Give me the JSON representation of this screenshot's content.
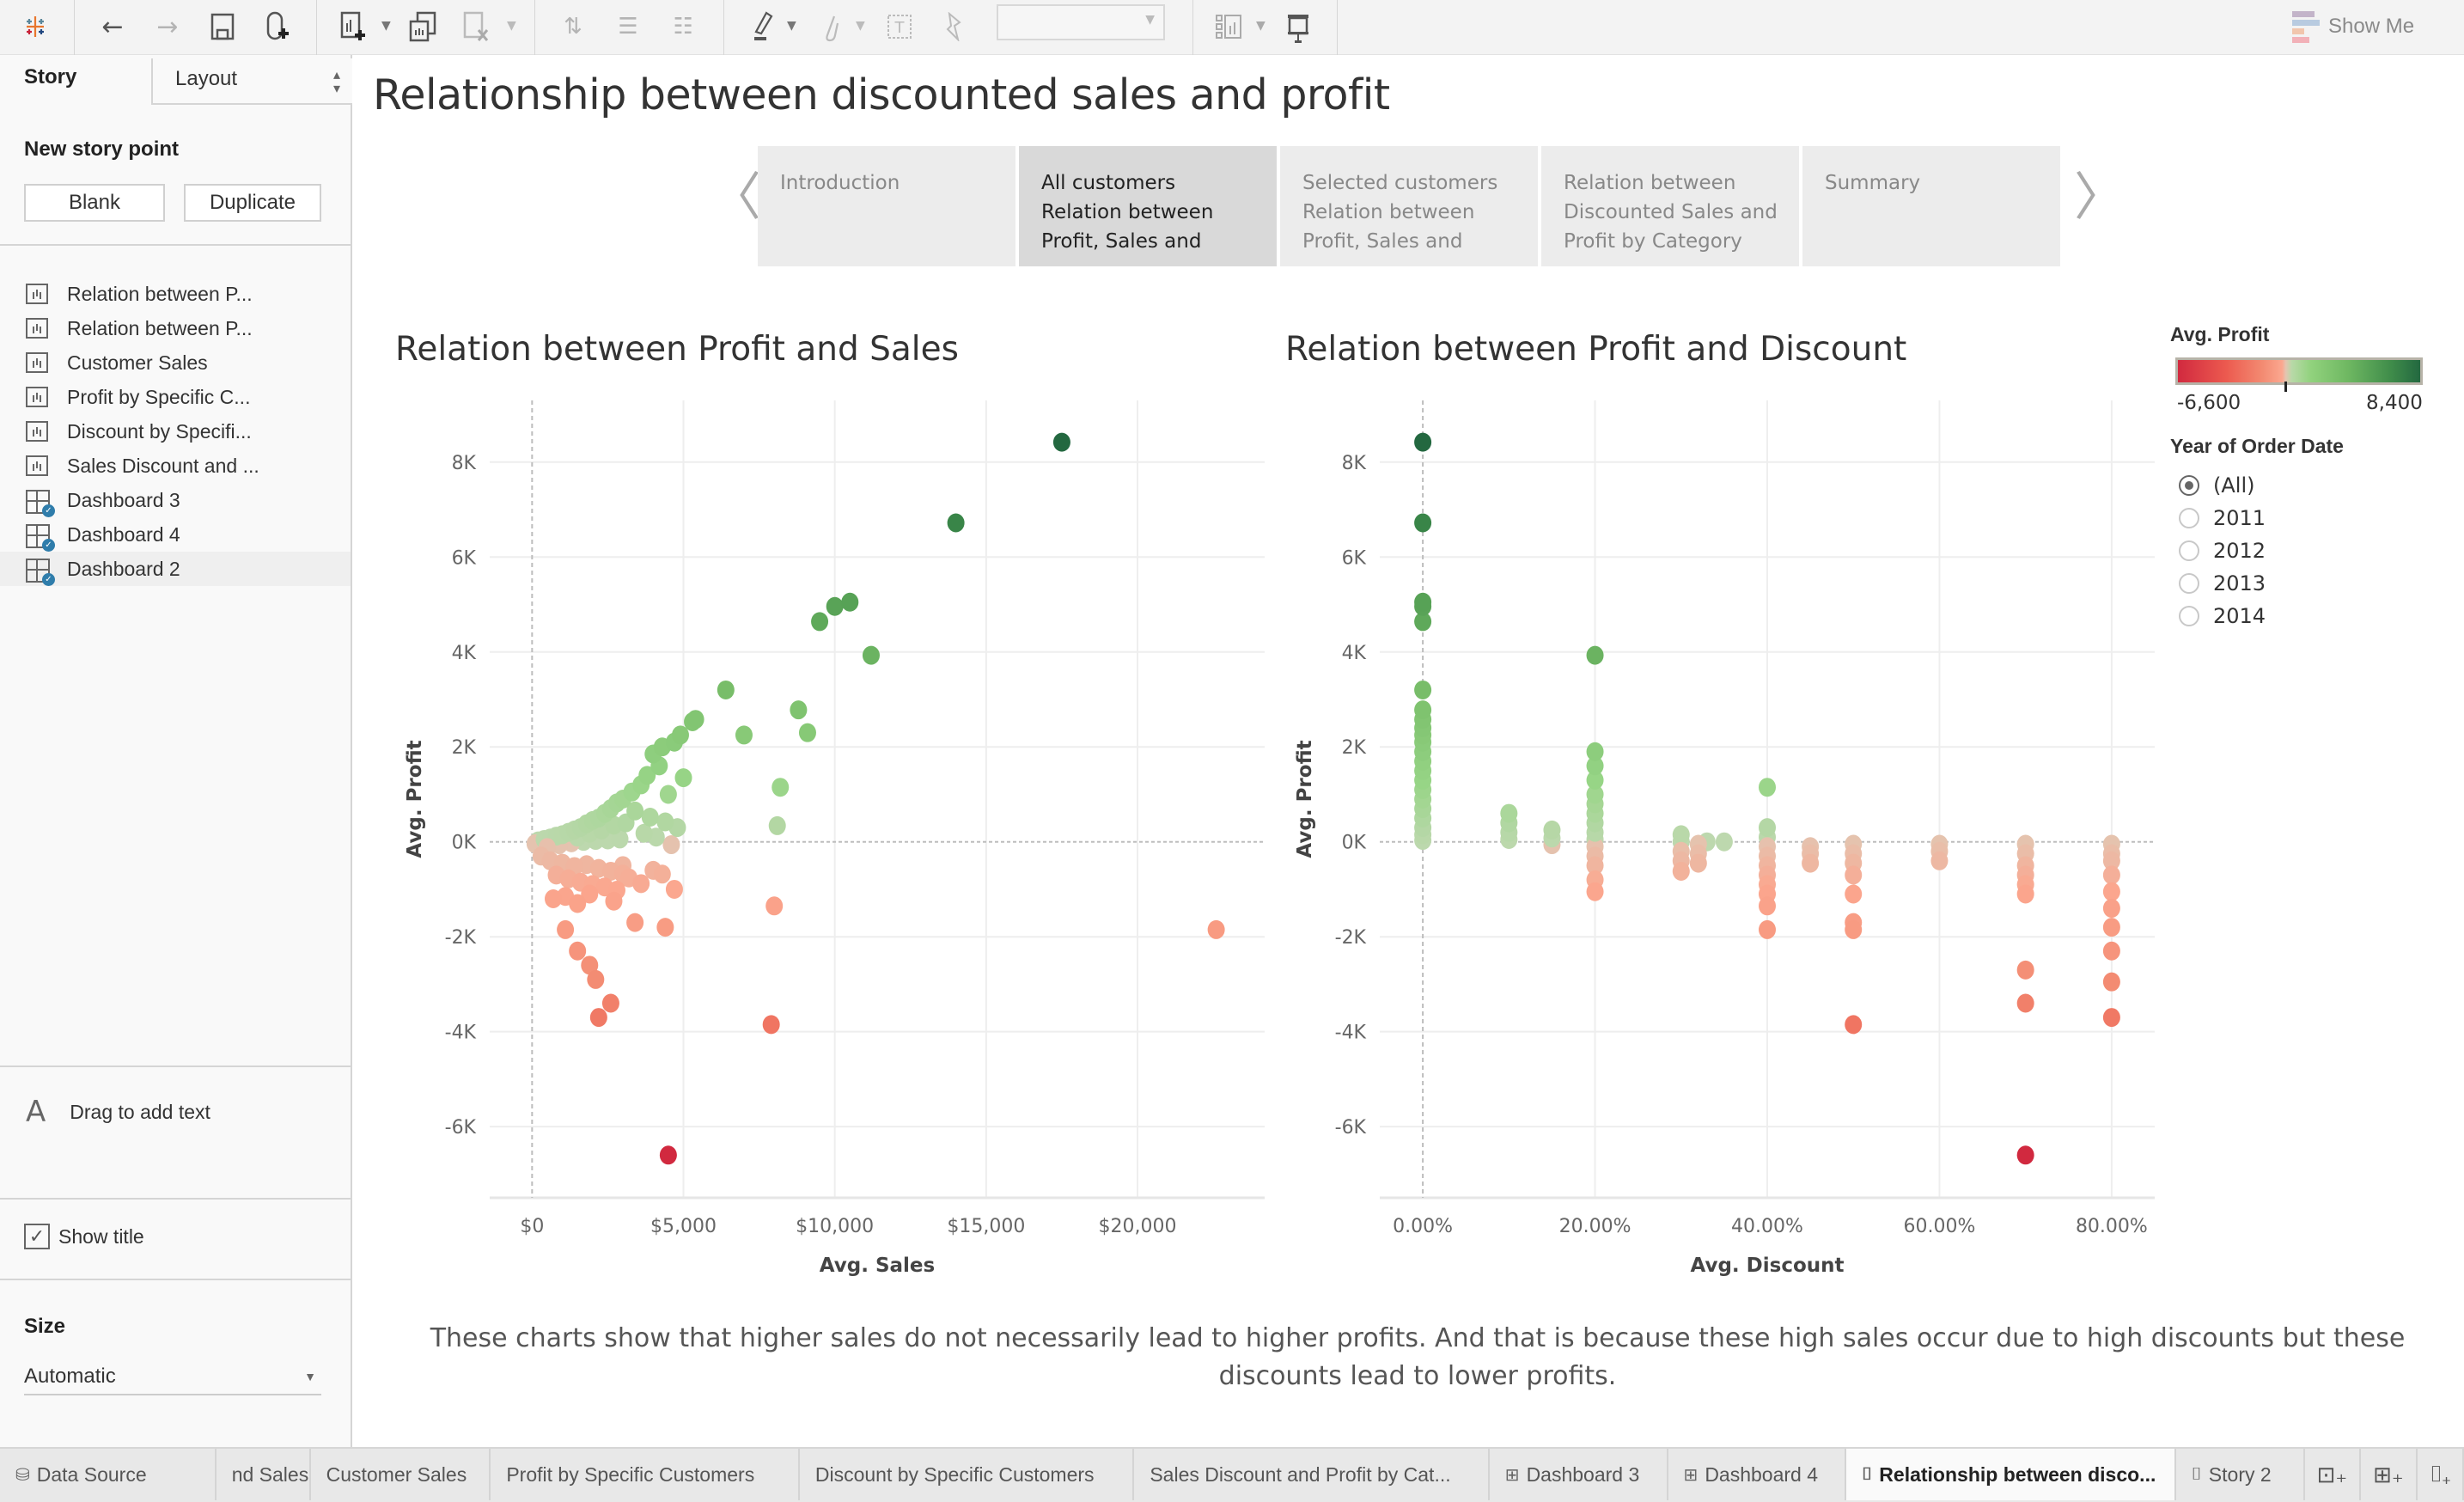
{
  "toolbar": {
    "icons": [
      "tableau-logo-icon",
      "undo-icon",
      "redo-icon",
      "save-icon",
      "add-datasource-icon",
      "new-worksheet-icon",
      "duplicate-sheet-icon",
      "clear-sheet-icon",
      "swap-icon",
      "sort-ascending-icon",
      "sort-descending-icon",
      "highlight-icon",
      "group-icon",
      "label-icon",
      "pin-icon",
      "fit-dropdown",
      "show-cards-icon",
      "presentation-icon"
    ],
    "show_me_label": "Show Me"
  },
  "sidebar": {
    "tab_story": "Story",
    "tab_layout": "Layout",
    "new_story_point_title": "New story point",
    "blank_button": "Blank",
    "duplicate_button": "Duplicate",
    "sheets": [
      {
        "label": "Relation between P...",
        "type": "worksheet"
      },
      {
        "label": "Relation between P...",
        "type": "worksheet"
      },
      {
        "label": "Customer Sales",
        "type": "worksheet"
      },
      {
        "label": "Profit by  Specific C...",
        "type": "worksheet"
      },
      {
        "label": "Discount by Specifi...",
        "type": "worksheet"
      },
      {
        "label": "Sales Discount and ...",
        "type": "worksheet"
      },
      {
        "label": "Dashboard 3",
        "type": "dashboard"
      },
      {
        "label": "Dashboard 4",
        "type": "dashboard"
      },
      {
        "label": "Dashboard 2",
        "type": "dashboard",
        "active": true
      }
    ],
    "drag_text": "Drag to add text",
    "show_title_label": "Show title",
    "show_title_checked": true,
    "size_label": "Size",
    "size_value": "Automatic"
  },
  "story": {
    "title": "Relationship between discounted sales and profit",
    "points": [
      {
        "lines": [
          "Introduction"
        ],
        "active": false
      },
      {
        "lines": [
          "All customers",
          "Relation between",
          "Profit, Sales and"
        ],
        "active": true
      },
      {
        "lines": [
          "Selected customers",
          "Relation between",
          "Profit, Sales and"
        ],
        "active": false
      },
      {
        "lines": [
          "Relation between",
          "Discounted Sales and",
          "Profit by Category"
        ],
        "active": false
      },
      {
        "lines": [
          "Summary"
        ],
        "active": false
      }
    ],
    "caption": "These charts show that higher sales do not necessarily lead to higher profits. And that is because these high sales occur due to high discounts but these discounts lead to lower profits."
  },
  "legend": {
    "title": "Avg. Profit",
    "min_label": "-6,600",
    "max_label": "8,400",
    "min": -6600,
    "max": 8400,
    "colors": {
      "negative": "#d1293f",
      "neutral": "#e4c4b0",
      "positive": "#236840"
    }
  },
  "filter": {
    "title": "Year of Order Date",
    "options": [
      {
        "label": "(All)",
        "selected": true
      },
      {
        "label": "2011",
        "selected": false
      },
      {
        "label": "2012",
        "selected": false
      },
      {
        "label": "2013",
        "selected": false
      },
      {
        "label": "2014",
        "selected": false
      }
    ]
  },
  "chart_data": [
    {
      "type": "scatter",
      "title": "Relation between Profit and Sales",
      "xlabel": "Avg. Sales",
      "ylabel": "Avg. Profit",
      "xlim": [
        -1400,
        24200
      ],
      "ylim": [
        -7500,
        9300
      ],
      "xticks": [
        0,
        5000,
        10000,
        15000,
        20000
      ],
      "xtick_labels": [
        "$0",
        "$5,000",
        "$10,000",
        "$15,000",
        "$20,000"
      ],
      "yticks": [
        -6000,
        -4000,
        -2000,
        0,
        2000,
        4000,
        6000,
        8000
      ],
      "ytick_labels": [
        "-6K",
        "-4K",
        "-2K",
        "0K",
        "2K",
        "4K",
        "6K",
        "8K"
      ],
      "grid": true,
      "points": [
        [
          17500,
          8420
        ],
        [
          14000,
          6720
        ],
        [
          10000,
          4960
        ],
        [
          10500,
          5050
        ],
        [
          9500,
          4640
        ],
        [
          11200,
          3930
        ],
        [
          6400,
          3200
        ],
        [
          8800,
          2780
        ],
        [
          9100,
          2300
        ],
        [
          7000,
          2250
        ],
        [
          5400,
          2580
        ],
        [
          5300,
          2530
        ],
        [
          4900,
          2250
        ],
        [
          4700,
          2100
        ],
        [
          8200,
          1150
        ],
        [
          8100,
          340
        ],
        [
          4300,
          2000
        ],
        [
          4000,
          1850
        ],
        [
          4200,
          1600
        ],
        [
          3800,
          1400
        ],
        [
          5000,
          1350
        ],
        [
          3600,
          1200
        ],
        [
          3300,
          1050
        ],
        [
          4500,
          1000
        ],
        [
          3000,
          900
        ],
        [
          2800,
          820
        ],
        [
          2600,
          700
        ],
        [
          2400,
          600
        ],
        [
          2200,
          500
        ],
        [
          2000,
          450
        ],
        [
          1800,
          380
        ],
        [
          1600,
          300
        ],
        [
          1400,
          250
        ],
        [
          1200,
          200
        ],
        [
          1000,
          150
        ],
        [
          800,
          120
        ],
        [
          600,
          80
        ],
        [
          400,
          50
        ],
        [
          200,
          20
        ],
        [
          3400,
          650
        ],
        [
          3900,
          520
        ],
        [
          4400,
          420
        ],
        [
          4800,
          300
        ],
        [
          3100,
          400
        ],
        [
          2700,
          350
        ],
        [
          2300,
          250
        ],
        [
          1900,
          180
        ],
        [
          1500,
          100
        ],
        [
          3700,
          180
        ],
        [
          4100,
          100
        ],
        [
          2900,
          60
        ],
        [
          2500,
          40
        ],
        [
          2100,
          30
        ],
        [
          1700,
          10
        ],
        [
          1300,
          -20
        ],
        [
          900,
          -60
        ],
        [
          500,
          -120
        ],
        [
          100,
          -40
        ],
        [
          4600,
          -60
        ],
        [
          300,
          -300
        ],
        [
          600,
          -400
        ],
        [
          1000,
          -450
        ],
        [
          1400,
          -520
        ],
        [
          1800,
          -480
        ],
        [
          2200,
          -560
        ],
        [
          2600,
          -620
        ],
        [
          3000,
          -500
        ],
        [
          800,
          -700
        ],
        [
          1200,
          -780
        ],
        [
          1600,
          -850
        ],
        [
          2000,
          -900
        ],
        [
          2400,
          -950
        ],
        [
          2800,
          -1020
        ],
        [
          3200,
          -760
        ],
        [
          3600,
          -880
        ],
        [
          4000,
          -600
        ],
        [
          4300,
          -680
        ],
        [
          4700,
          -1000
        ],
        [
          3000,
          -680
        ],
        [
          700,
          -1200
        ],
        [
          1100,
          -1150
        ],
        [
          1500,
          -1300
        ],
        [
          1900,
          -1100
        ],
        [
          2700,
          -1250
        ],
        [
          3400,
          -1700
        ],
        [
          4400,
          -1800
        ],
        [
          8000,
          -1350
        ],
        [
          22600,
          -1850
        ],
        [
          1100,
          -1850
        ],
        [
          1500,
          -2300
        ],
        [
          1900,
          -2600
        ],
        [
          2100,
          -2900
        ],
        [
          2600,
          -3400
        ],
        [
          2200,
          -3700
        ],
        [
          7900,
          -3850
        ],
        [
          4500,
          -6600
        ]
      ]
    },
    {
      "type": "scatter",
      "title": "Relation between Profit and Discount",
      "xlabel": "Avg. Discount",
      "ylabel": "Avg. Profit",
      "xlim": [
        -0.05,
        0.85
      ],
      "ylim": [
        -7500,
        9300
      ],
      "xticks": [
        0,
        0.2,
        0.4,
        0.6,
        0.8
      ],
      "xtick_labels": [
        "0.00%",
        "20.00%",
        "40.00%",
        "60.00%",
        "80.00%"
      ],
      "yticks": [
        -6000,
        -4000,
        -2000,
        0,
        2000,
        4000,
        6000,
        8000
      ],
      "ytick_labels": [
        "-6K",
        "-4K",
        "-2K",
        "0K",
        "2K",
        "4K",
        "6K",
        "8K"
      ],
      "grid": true,
      "points": [
        [
          0,
          8420
        ],
        [
          0,
          6720
        ],
        [
          0,
          4960
        ],
        [
          0,
          5050
        ],
        [
          0,
          4640
        ],
        [
          0,
          3200
        ],
        [
          0,
          2780
        ],
        [
          0,
          2580
        ],
        [
          0,
          2400
        ],
        [
          0,
          2250
        ],
        [
          0,
          2100
        ],
        [
          0,
          1900
        ],
        [
          0,
          1700
        ],
        [
          0,
          1500
        ],
        [
          0,
          1300
        ],
        [
          0,
          1100
        ],
        [
          0,
          900
        ],
        [
          0,
          700
        ],
        [
          0,
          500
        ],
        [
          0,
          300
        ],
        [
          0,
          150
        ],
        [
          0,
          30
        ],
        [
          0.1,
          600
        ],
        [
          0.1,
          400
        ],
        [
          0.1,
          200
        ],
        [
          0.1,
          50
        ],
        [
          0.15,
          250
        ],
        [
          0.15,
          80
        ],
        [
          0.15,
          -60
        ],
        [
          0.2,
          3930
        ],
        [
          0.2,
          1900
        ],
        [
          0.2,
          1600
        ],
        [
          0.2,
          1300
        ],
        [
          0.2,
          1000
        ],
        [
          0.2,
          800
        ],
        [
          0.2,
          600
        ],
        [
          0.2,
          400
        ],
        [
          0.2,
          200
        ],
        [
          0.2,
          50
        ],
        [
          0.2,
          -100
        ],
        [
          0.2,
          -300
        ],
        [
          0.2,
          -500
        ],
        [
          0.2,
          -800
        ],
        [
          0.2,
          -1050
        ],
        [
          0.3,
          150
        ],
        [
          0.3,
          0
        ],
        [
          0.3,
          -200
        ],
        [
          0.3,
          -400
        ],
        [
          0.3,
          -620
        ],
        [
          0.32,
          -50
        ],
        [
          0.32,
          -250
        ],
        [
          0.32,
          -450
        ],
        [
          0.33,
          0
        ],
        [
          0.35,
          0
        ],
        [
          0.4,
          1150
        ],
        [
          0.4,
          300
        ],
        [
          0.4,
          100
        ],
        [
          0.4,
          -100
        ],
        [
          0.4,
          -300
        ],
        [
          0.4,
          -500
        ],
        [
          0.4,
          -700
        ],
        [
          0.4,
          -900
        ],
        [
          0.4,
          -1100
        ],
        [
          0.4,
          -1350
        ],
        [
          0.4,
          -1850
        ],
        [
          0.45,
          -100
        ],
        [
          0.45,
          -250
        ],
        [
          0.45,
          -450
        ],
        [
          0.5,
          -50
        ],
        [
          0.5,
          -250
        ],
        [
          0.5,
          -450
        ],
        [
          0.5,
          -700
        ],
        [
          0.5,
          -1100
        ],
        [
          0.5,
          -1700
        ],
        [
          0.5,
          -1850
        ],
        [
          0.5,
          -3850
        ],
        [
          0.6,
          -50
        ],
        [
          0.6,
          -200
        ],
        [
          0.6,
          -400
        ],
        [
          0.7,
          -50
        ],
        [
          0.7,
          -250
        ],
        [
          0.7,
          -500
        ],
        [
          0.7,
          -700
        ],
        [
          0.7,
          -900
        ],
        [
          0.7,
          -1100
        ],
        [
          0.7,
          -2700
        ],
        [
          0.7,
          -3400
        ],
        [
          0.7,
          -6600
        ],
        [
          0.8,
          -50
        ],
        [
          0.8,
          -250
        ],
        [
          0.8,
          -400
        ],
        [
          0.8,
          -700
        ],
        [
          0.8,
          -1050
        ],
        [
          0.8,
          -1400
        ],
        [
          0.8,
          -1800
        ],
        [
          0.8,
          -2300
        ],
        [
          0.8,
          -2950
        ],
        [
          0.8,
          -3700
        ]
      ]
    }
  ],
  "bottom_tabs": [
    {
      "label": "Data Source",
      "icon": "datasource-icon"
    },
    {
      "label": "nd Sales",
      "icon": ""
    },
    {
      "label": "Customer Sales",
      "icon": ""
    },
    {
      "label": "Profit by  Specific Customers",
      "icon": ""
    },
    {
      "label": "Discount by Specific Customers",
      "icon": ""
    },
    {
      "label": "Sales Discount and Profit by Cat...",
      "icon": ""
    },
    {
      "label": "Dashboard 3",
      "icon": "dashboard-icon"
    },
    {
      "label": "Dashboard 4",
      "icon": "dashboard-icon"
    },
    {
      "label": "Relationship between disco...",
      "icon": "story-icon",
      "active": true
    },
    {
      "label": "Story 2",
      "icon": "story-icon"
    }
  ],
  "bottom_actions": [
    "new-worksheet-icon",
    "new-dashboard-icon",
    "new-story-icon"
  ]
}
